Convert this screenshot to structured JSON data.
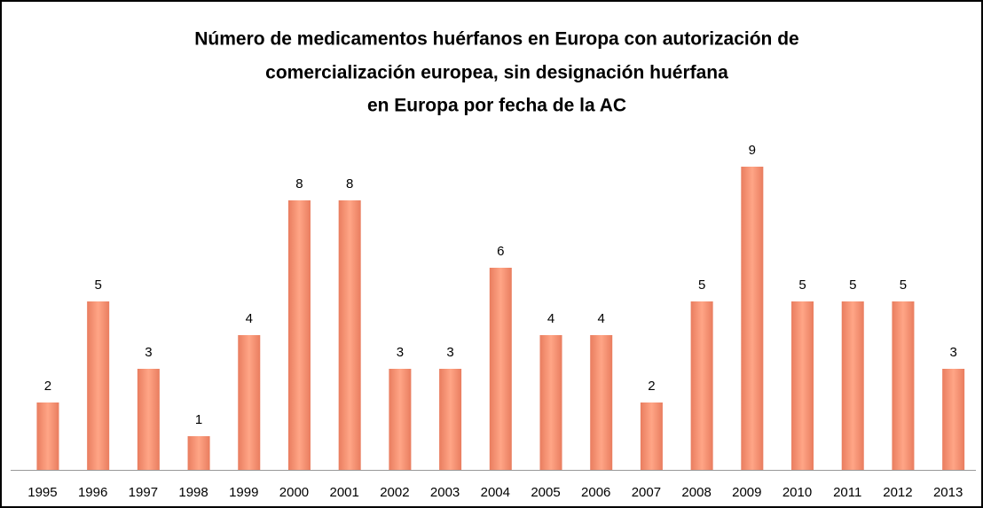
{
  "chart_data": {
    "type": "bar",
    "title": [
      "Número de medicamentos huérfanos en Europa con autorización de",
      "comercialización europea, sin designación huérfana",
      "en Europa por fecha de la AC"
    ],
    "categories": [
      "1995",
      "1996",
      "1997",
      "1998",
      "1999",
      "2000",
      "2001",
      "2002",
      "2003",
      "2004",
      "2005",
      "2006",
      "2007",
      "2008",
      "2009",
      "2010",
      "2011",
      "2012",
      "2013"
    ],
    "values": [
      2,
      5,
      3,
      1,
      4,
      8,
      8,
      3,
      3,
      6,
      4,
      4,
      2,
      5,
      9,
      5,
      5,
      5,
      3
    ],
    "color": "#f09274",
    "ylim": [
      0,
      10
    ]
  }
}
